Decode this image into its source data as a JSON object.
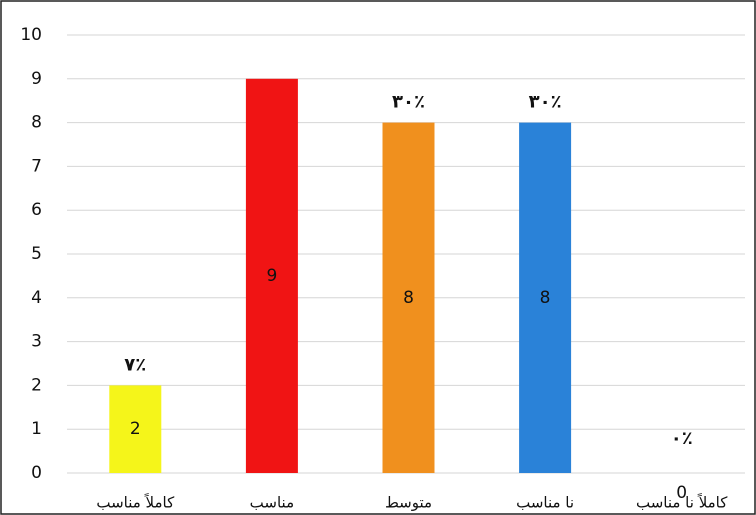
{
  "chart_data": {
    "type": "bar",
    "categories": [
      "کاملاً مناسب",
      "مناسب",
      "متوسط",
      "نا مناسب",
      "کاملاً نا مناسب"
    ],
    "values": [
      2,
      9,
      8,
      8,
      0
    ],
    "colors": [
      "#f5f51a",
      "#f01414",
      "#f0901e",
      "#2a82d8",
      "#2a82d8"
    ],
    "percent_labels": [
      "۷٪",
      null,
      "۳۰٪",
      "۳۰٪",
      "۰٪"
    ],
    "ylim": [
      0,
      10
    ],
    "yticks": [
      0,
      1,
      2,
      3,
      4,
      5,
      6,
      7,
      8,
      9,
      10
    ],
    "grid": true
  }
}
